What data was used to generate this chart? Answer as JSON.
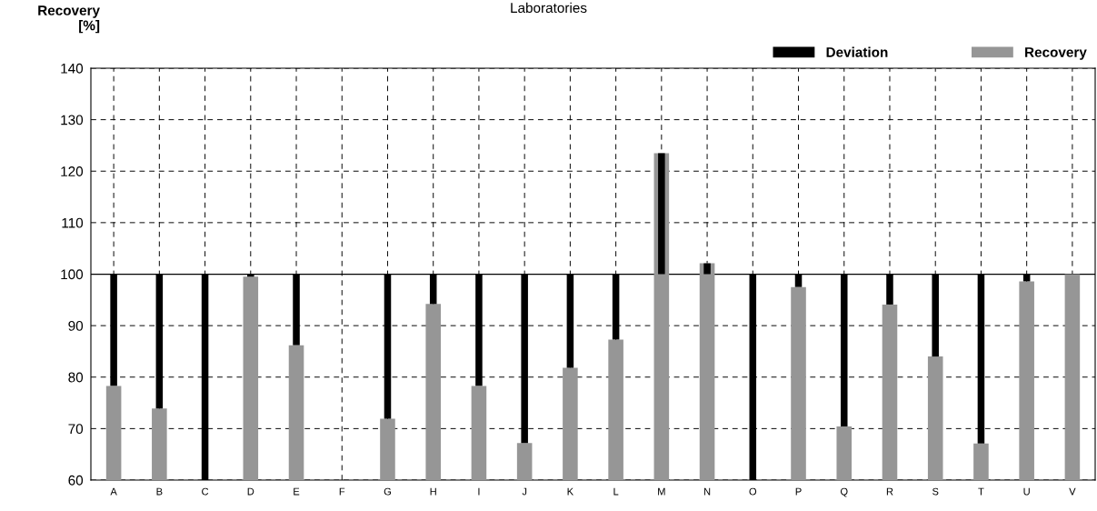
{
  "chart_data": {
    "type": "bar",
    "title": "Laboratories",
    "ylabel": "Recovery\n[%]",
    "categories": [
      "A",
      "B",
      "C",
      "D",
      "E",
      "F",
      "G",
      "H",
      "I",
      "J",
      "K",
      "L",
      "M",
      "N",
      "O",
      "P",
      "Q",
      "R",
      "S",
      "T",
      "U",
      "V"
    ],
    "series": [
      {
        "name": "Deviation",
        "color": "#000000",
        "base": [
          100,
          100,
          100,
          100,
          100,
          null,
          100,
          100,
          100,
          100,
          100,
          100,
          100,
          100,
          100,
          100,
          100,
          100,
          100,
          100,
          100,
          null
        ],
        "values": [
          -21.7,
          -26.1,
          -40,
          -0.5,
          -13.8,
          null,
          -28.1,
          -5.8,
          -21.7,
          -32.8,
          -18.2,
          -12.7,
          23.5,
          2.1,
          -40,
          -2.5,
          -29.6,
          -5.9,
          -16,
          -32.9,
          -1.4,
          null
        ]
      },
      {
        "name": "Recovery",
        "color": "#969696",
        "values": [
          78.3,
          73.9,
          null,
          99.5,
          86.2,
          null,
          71.9,
          94.2,
          78.3,
          67.2,
          81.8,
          87.3,
          123.5,
          102.1,
          null,
          97.5,
          70.4,
          94.1,
          84,
          67.1,
          98.6,
          100
        ]
      }
    ],
    "ylim": [
      60,
      140
    ],
    "yticks": [
      60,
      70,
      80,
      90,
      100,
      110,
      120,
      130,
      140
    ],
    "ref_lines": [
      {
        "axis": "y",
        "value": 100,
        "color": "#000000",
        "line_style": "solid"
      }
    ],
    "grid": true,
    "legend": "top right"
  }
}
